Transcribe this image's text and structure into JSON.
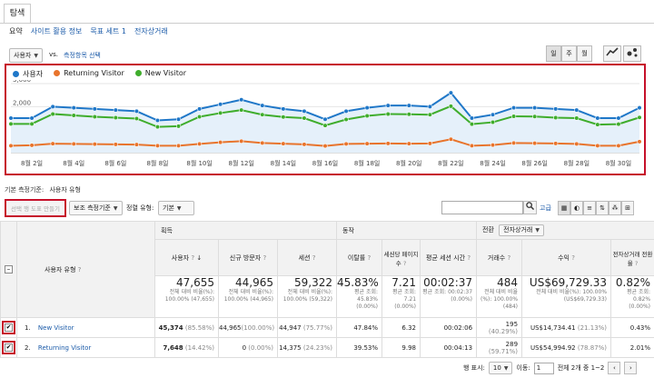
{
  "tabs": {
    "explore": "탐색"
  },
  "subtabs": [
    "요약",
    "사이트 활용 정보",
    "목표 세트 1",
    "전자상거래"
  ],
  "metric_select": {
    "value": "사용자",
    "vs": "vs.",
    "pick": "측정항목 선택"
  },
  "period_buttons": [
    "일",
    "주",
    "월"
  ],
  "chart_data": {
    "type": "line",
    "x": [
      "8월 1일",
      "8월 2일",
      "8월 3일",
      "8월 4일",
      "8월 5일",
      "8월 6일",
      "8월 7일",
      "8월 8일",
      "8월 9일",
      "8월 10일",
      "8월 11일",
      "8월 12일",
      "8월 13일",
      "8월 14일",
      "8월 15일",
      "8월 16일",
      "8월 17일",
      "8월 18일",
      "8월 19일",
      "8월 20일",
      "8월 21일",
      "8월 22일",
      "8월 23일",
      "8월 24일",
      "8월 25일",
      "8월 26일",
      "8월 27일",
      "8월 28일",
      "8월 29일",
      "8월 30일",
      "8월 31일"
    ],
    "x_ticks": [
      "8월 2일",
      "8월 4일",
      "8월 6일",
      "8월 8일",
      "8월 10일",
      "8월 12일",
      "8월 14일",
      "8월 16일",
      "8월 18일",
      "8월 20일",
      "8월 22일",
      "8월 24일",
      "8월 26일",
      "8월 28일",
      "8월 30일"
    ],
    "y_ticks": [
      "3,000",
      "2,000",
      "1,000"
    ],
    "ylim": [
      0,
      3000
    ],
    "series": [
      {
        "name": "사용자",
        "color": "#1f77c8",
        "values": [
          1500,
          1500,
          2000,
          1950,
          1900,
          1850,
          1800,
          1400,
          1450,
          1900,
          2100,
          2300,
          2050,
          1900,
          1800,
          1450,
          1800,
          1950,
          2050,
          2050,
          2000,
          2600,
          1500,
          1650,
          1950,
          1950,
          1900,
          1850,
          1500,
          1500,
          1950
        ]
      },
      {
        "name": "Returning Visitor",
        "color": "#e8742c",
        "values": [
          300,
          320,
          390,
          380,
          370,
          360,
          350,
          300,
          300,
          380,
          450,
          500,
          420,
          390,
          360,
          290,
          380,
          390,
          400,
          390,
          400,
          580,
          300,
          330,
          420,
          410,
          400,
          380,
          300,
          300,
          480
        ]
      },
      {
        "name": "New Visitor",
        "color": "#3fad2c",
        "values": [
          1250,
          1250,
          1680,
          1620,
          1560,
          1520,
          1480,
          1120,
          1150,
          1560,
          1720,
          1850,
          1650,
          1550,
          1500,
          1180,
          1440,
          1600,
          1680,
          1670,
          1650,
          2020,
          1240,
          1320,
          1580,
          1570,
          1520,
          1500,
          1220,
          1240,
          1530
        ]
      }
    ]
  },
  "dimension": {
    "label": "기본 측정기준:",
    "value": "사용자 유형"
  },
  "toolbar": {
    "segment_btn": "선택 행 도표 만들기",
    "secondary_dim": "보조 측정기준",
    "sort_label": "정렬 유형:",
    "sort_value": "기본",
    "advanced": "고급"
  },
  "table": {
    "group_acquisition": "획득",
    "group_behavior": "동작",
    "group_conversion": "전환",
    "conversion_select": "전자상거래",
    "dim_header": "사용자 유형",
    "columns": [
      "사용자",
      "신규 방문자",
      "세션",
      "이탈률",
      "세션당 페이지수",
      "평균 세션 시간",
      "거래수",
      "수익",
      "전자상거래 전환율"
    ],
    "totals": {
      "users": "47,655",
      "users_sub": "전체 대비 비율(%): 100.00% (47,655)",
      "new": "44,965",
      "new_sub": "전체 대비 비율(%): 100.00% (44,965)",
      "sessions": "59,322",
      "sessions_sub": "전체 대비 비율(%): 100.00% (59,322)",
      "bounce": "45.83%",
      "bounce_sub": "평균 조회: 45.83% (0.00%)",
      "pps": "7.21",
      "pps_sub": "평균 조회: 7.21 (0.00%)",
      "dur": "00:02:37",
      "dur_sub": "평균 조회: 00:02:37 (0.00%)",
      "tx": "484",
      "tx_sub": "전체 대비 비율(%): 100.00% (484)",
      "rev": "US$69,729.33",
      "rev_sub": "전체 대비 비율(%): 100.00% (US$69,729.33)",
      "cr": "0.82%",
      "cr_sub": "평균 조회: 0.82% (0.00%)"
    },
    "rows": [
      {
        "idx": "1.",
        "name": "New Visitor",
        "users": "45,374",
        "users_pct": "(85.58%)",
        "new": "44,965",
        "new_pct": "(100.00%)",
        "sessions": "44,947",
        "sessions_pct": "(75.77%)",
        "bounce": "47.84%",
        "pps": "6.32",
        "dur": "00:02:06",
        "tx": "195",
        "tx_pct": "(40.29%)",
        "rev": "US$14,734.41",
        "rev_pct": "(21.13%)",
        "cr": "0.43%"
      },
      {
        "idx": "2.",
        "name": "Returning Visitor",
        "users": "7,648",
        "users_pct": "(14.42%)",
        "new": "0",
        "new_pct": "(0.00%)",
        "sessions": "14,375",
        "sessions_pct": "(24.23%)",
        "bounce": "39.53%",
        "pps": "9.98",
        "dur": "00:04:13",
        "tx": "289",
        "tx_pct": "(59.71%)",
        "rev": "US$54,994.92",
        "rev_pct": "(78.87%)",
        "cr": "2.01%"
      }
    ]
  },
  "pager": {
    "rows_label": "행 표시:",
    "rows_value": "10",
    "goto_label": "이동:",
    "goto_value": "1",
    "range": "전체 2개 중 1~2"
  }
}
